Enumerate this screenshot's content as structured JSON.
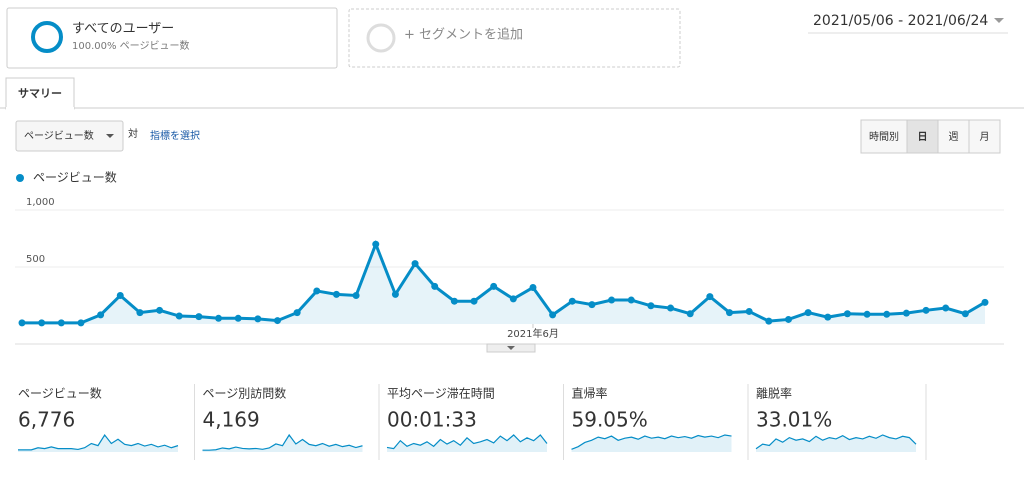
{
  "segment": {
    "name": "すべてのユーザー",
    "detail": "100.00% ページビュー数",
    "add": "+ セグメントを追加"
  },
  "date_range": "2021/05/06 - 2021/06/24",
  "tab": "サマリー",
  "controls": {
    "metric": "ページビュー数",
    "versus": "対",
    "select": "指標を選択",
    "granularity": [
      "時間別",
      "日",
      "週",
      "月"
    ]
  },
  "chart_data": {
    "type": "line",
    "categories": [
      null,
      null,
      null,
      null,
      null,
      null,
      null,
      null,
      null,
      null,
      null,
      null,
      null,
      null,
      null,
      null,
      null,
      null,
      null,
      null,
      null,
      null,
      null,
      null,
      null,
      null,
      "2021年6月",
      null,
      null,
      null,
      null,
      null,
      null,
      null,
      null,
      null,
      null,
      null,
      null,
      null,
      null,
      null,
      null,
      null,
      null,
      null,
      null,
      null,
      null,
      null
    ],
    "series": [
      {
        "name": "ページビュー数",
        "color": "#058dc7",
        "values": [
          10,
          10,
          10,
          10,
          80,
          250,
          100,
          120,
          70,
          65,
          50,
          50,
          45,
          30,
          100,
          290,
          260,
          250,
          700,
          260,
          530,
          330,
          200,
          200,
          330,
          220,
          320,
          80,
          200,
          170,
          210,
          210,
          160,
          140,
          90,
          240,
          100,
          110,
          25,
          40,
          100,
          60,
          90,
          85,
          85,
          95,
          120,
          140,
          90,
          190
        ]
      }
    ],
    "ylim": [
      0,
      1000
    ],
    "yticks": [
      500,
      {
        "value": 1000,
        "label": "1,000"
      }
    ],
    "grid": true,
    "area": true
  },
  "metrics": [
    {
      "label": "ページビュー数",
      "value": "6,776",
      "spark": [
        5,
        5,
        5,
        10,
        8,
        12,
        8,
        8,
        8,
        6,
        10,
        20,
        15,
        40,
        20,
        30,
        18,
        15,
        20,
        14,
        18,
        12,
        16,
        10,
        15
      ]
    },
    {
      "label": "ページ別訪問数",
      "value": "4,169",
      "spark": [
        4,
        4,
        5,
        9,
        7,
        11,
        8,
        7,
        8,
        6,
        9,
        18,
        14,
        38,
        18,
        28,
        17,
        14,
        19,
        13,
        17,
        12,
        15,
        10,
        14
      ]
    },
    {
      "label": "平均ページ滞在時間",
      "value": "00:01:33",
      "spark": [
        8,
        6,
        20,
        10,
        15,
        12,
        18,
        10,
        22,
        14,
        20,
        12,
        25,
        15,
        18,
        22,
        16,
        28,
        20,
        30,
        18,
        25,
        20,
        30,
        15
      ]
    },
    {
      "label": "直帰率",
      "value": "59.05%",
      "spark": [
        5,
        10,
        18,
        22,
        28,
        25,
        30,
        22,
        26,
        28,
        24,
        30,
        26,
        28,
        25,
        30,
        27,
        29,
        26,
        31,
        28,
        30,
        27,
        32,
        30
      ]
    },
    {
      "label": "離脱率",
      "value": "33.01%",
      "spark": [
        5,
        12,
        10,
        20,
        15,
        22,
        18,
        20,
        16,
        24,
        18,
        22,
        20,
        25,
        19,
        22,
        20,
        24,
        21,
        26,
        22,
        20,
        24,
        22,
        12
      ]
    }
  ]
}
